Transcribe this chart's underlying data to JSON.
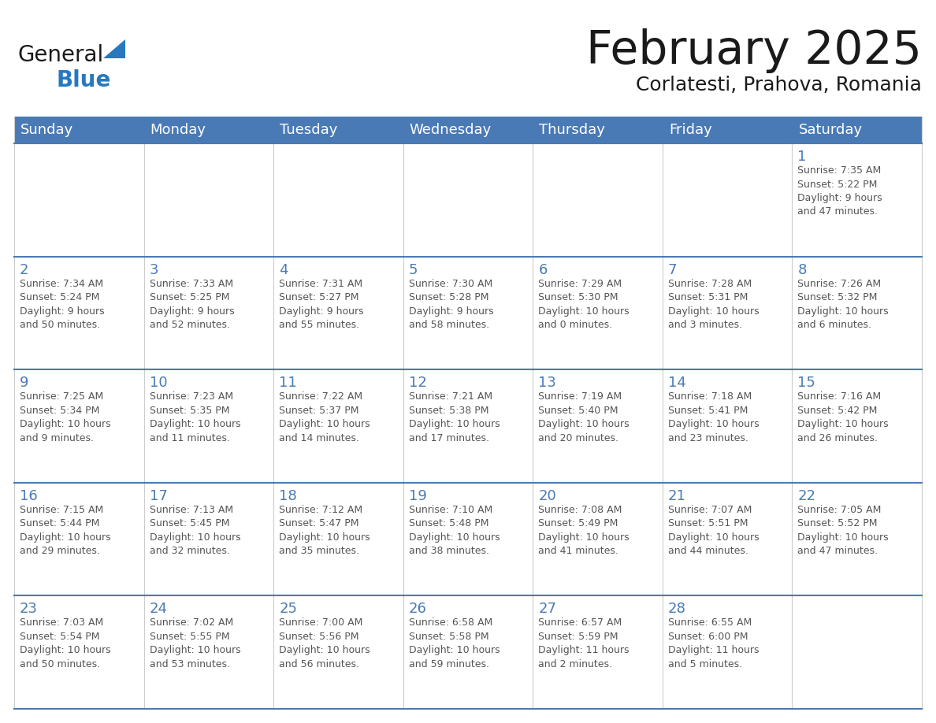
{
  "title": "February 2025",
  "subtitle": "Corlatesti, Prahova, Romania",
  "header_color": "#4a7ab5",
  "header_text_color": "#FFFFFF",
  "cell_bg_color": "#FFFFFF",
  "cell_border_color": "#4a7ab5",
  "day_number_color": "#4a7ab5",
  "cell_text_color": "#555555",
  "alt_row_color": "#f0f4f8",
  "days_of_week": [
    "Sunday",
    "Monday",
    "Tuesday",
    "Wednesday",
    "Thursday",
    "Friday",
    "Saturday"
  ],
  "logo_general_color": "#1a1a1a",
  "logo_blue_color": "#2878C0",
  "title_fontsize": 42,
  "subtitle_fontsize": 18,
  "header_fontsize": 13,
  "day_num_fontsize": 13,
  "cell_text_fontsize": 9,
  "calendar_data": [
    [
      {
        "day": null,
        "data": null
      },
      {
        "day": null,
        "data": null
      },
      {
        "day": null,
        "data": null
      },
      {
        "day": null,
        "data": null
      },
      {
        "day": null,
        "data": null
      },
      {
        "day": null,
        "data": null
      },
      {
        "day": 1,
        "data": "Sunrise: 7:35 AM\nSunset: 5:22 PM\nDaylight: 9 hours\nand 47 minutes."
      }
    ],
    [
      {
        "day": 2,
        "data": "Sunrise: 7:34 AM\nSunset: 5:24 PM\nDaylight: 9 hours\nand 50 minutes."
      },
      {
        "day": 3,
        "data": "Sunrise: 7:33 AM\nSunset: 5:25 PM\nDaylight: 9 hours\nand 52 minutes."
      },
      {
        "day": 4,
        "data": "Sunrise: 7:31 AM\nSunset: 5:27 PM\nDaylight: 9 hours\nand 55 minutes."
      },
      {
        "day": 5,
        "data": "Sunrise: 7:30 AM\nSunset: 5:28 PM\nDaylight: 9 hours\nand 58 minutes."
      },
      {
        "day": 6,
        "data": "Sunrise: 7:29 AM\nSunset: 5:30 PM\nDaylight: 10 hours\nand 0 minutes."
      },
      {
        "day": 7,
        "data": "Sunrise: 7:28 AM\nSunset: 5:31 PM\nDaylight: 10 hours\nand 3 minutes."
      },
      {
        "day": 8,
        "data": "Sunrise: 7:26 AM\nSunset: 5:32 PM\nDaylight: 10 hours\nand 6 minutes."
      }
    ],
    [
      {
        "day": 9,
        "data": "Sunrise: 7:25 AM\nSunset: 5:34 PM\nDaylight: 10 hours\nand 9 minutes."
      },
      {
        "day": 10,
        "data": "Sunrise: 7:23 AM\nSunset: 5:35 PM\nDaylight: 10 hours\nand 11 minutes."
      },
      {
        "day": 11,
        "data": "Sunrise: 7:22 AM\nSunset: 5:37 PM\nDaylight: 10 hours\nand 14 minutes."
      },
      {
        "day": 12,
        "data": "Sunrise: 7:21 AM\nSunset: 5:38 PM\nDaylight: 10 hours\nand 17 minutes."
      },
      {
        "day": 13,
        "data": "Sunrise: 7:19 AM\nSunset: 5:40 PM\nDaylight: 10 hours\nand 20 minutes."
      },
      {
        "day": 14,
        "data": "Sunrise: 7:18 AM\nSunset: 5:41 PM\nDaylight: 10 hours\nand 23 minutes."
      },
      {
        "day": 15,
        "data": "Sunrise: 7:16 AM\nSunset: 5:42 PM\nDaylight: 10 hours\nand 26 minutes."
      }
    ],
    [
      {
        "day": 16,
        "data": "Sunrise: 7:15 AM\nSunset: 5:44 PM\nDaylight: 10 hours\nand 29 minutes."
      },
      {
        "day": 17,
        "data": "Sunrise: 7:13 AM\nSunset: 5:45 PM\nDaylight: 10 hours\nand 32 minutes."
      },
      {
        "day": 18,
        "data": "Sunrise: 7:12 AM\nSunset: 5:47 PM\nDaylight: 10 hours\nand 35 minutes."
      },
      {
        "day": 19,
        "data": "Sunrise: 7:10 AM\nSunset: 5:48 PM\nDaylight: 10 hours\nand 38 minutes."
      },
      {
        "day": 20,
        "data": "Sunrise: 7:08 AM\nSunset: 5:49 PM\nDaylight: 10 hours\nand 41 minutes."
      },
      {
        "day": 21,
        "data": "Sunrise: 7:07 AM\nSunset: 5:51 PM\nDaylight: 10 hours\nand 44 minutes."
      },
      {
        "day": 22,
        "data": "Sunrise: 7:05 AM\nSunset: 5:52 PM\nDaylight: 10 hours\nand 47 minutes."
      }
    ],
    [
      {
        "day": 23,
        "data": "Sunrise: 7:03 AM\nSunset: 5:54 PM\nDaylight: 10 hours\nand 50 minutes."
      },
      {
        "day": 24,
        "data": "Sunrise: 7:02 AM\nSunset: 5:55 PM\nDaylight: 10 hours\nand 53 minutes."
      },
      {
        "day": 25,
        "data": "Sunrise: 7:00 AM\nSunset: 5:56 PM\nDaylight: 10 hours\nand 56 minutes."
      },
      {
        "day": 26,
        "data": "Sunrise: 6:58 AM\nSunset: 5:58 PM\nDaylight: 10 hours\nand 59 minutes."
      },
      {
        "day": 27,
        "data": "Sunrise: 6:57 AM\nSunset: 5:59 PM\nDaylight: 11 hours\nand 2 minutes."
      },
      {
        "day": 28,
        "data": "Sunrise: 6:55 AM\nSunset: 6:00 PM\nDaylight: 11 hours\nand 5 minutes."
      },
      {
        "day": null,
        "data": null
      }
    ]
  ]
}
